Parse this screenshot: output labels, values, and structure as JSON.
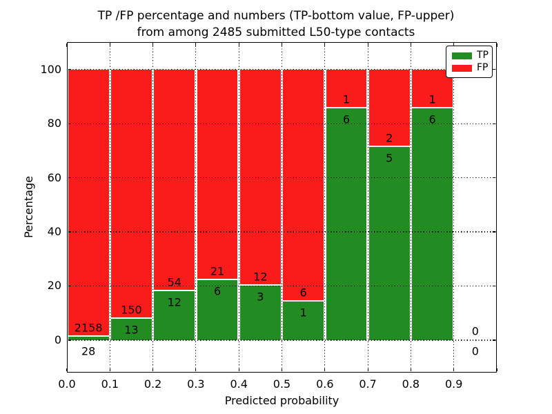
{
  "figure": {
    "title_line1": "TP /FP percentage and numbers (TP-bottom value, FP-upper)",
    "title_line2": "from among 2485 submitted L50-type contacts",
    "background_color": "#ffffff"
  },
  "legend": {
    "position": "upper-right",
    "entries": [
      {
        "label": "TP",
        "color": "#228b22"
      },
      {
        "label": "FP",
        "color": "#fa1b1b"
      }
    ]
  },
  "chart_data": {
    "type": "bar",
    "stacked": true,
    "title": "TP /FP percentage and numbers (TP-bottom value, FP-upper) from among 2485 submitted L50-type contacts",
    "xlabel": "Predicted probability",
    "ylabel": "Percentage",
    "xlim": [
      0.0,
      1.0
    ],
    "ylim": [
      -12,
      110
    ],
    "x_ticks": [
      0.0,
      0.1,
      0.2,
      0.3,
      0.4,
      0.5,
      0.6,
      0.7,
      0.8,
      0.9
    ],
    "x_tick_labels": [
      "0.0",
      "0.1",
      "0.2",
      "0.3",
      "0.4",
      "0.5",
      "0.6",
      "0.7",
      "0.8",
      "0.9"
    ],
    "y_ticks": [
      0,
      20,
      40,
      60,
      80,
      100
    ],
    "y_tick_labels": [
      "0",
      "20",
      "40",
      "60",
      "80",
      "100"
    ],
    "grid": "dotted-black-both-axes",
    "bin_width": 0.1,
    "total_contacts": 2485,
    "categories": [
      "0.0-0.1",
      "0.1-0.2",
      "0.2-0.3",
      "0.3-0.4",
      "0.4-0.5",
      "0.5-0.6",
      "0.6-0.7",
      "0.7-0.8",
      "0.8-0.9",
      "0.9-1.0"
    ],
    "series": [
      {
        "name": "TP",
        "color": "#228b22",
        "counts": [
          28,
          13,
          12,
          6,
          3,
          1,
          6,
          5,
          6,
          0
        ]
      },
      {
        "name": "FP",
        "color": "#fa1b1b",
        "counts": [
          2158,
          150,
          54,
          21,
          12,
          6,
          1,
          2,
          1,
          0
        ]
      }
    ],
    "tp_percent": [
      1.28,
      7.98,
      18.18,
      22.22,
      20.0,
      14.29,
      85.71,
      71.43,
      85.71,
      null
    ],
    "fp_percent": [
      98.72,
      92.02,
      81.82,
      77.78,
      80.0,
      85.71,
      14.29,
      28.57,
      14.29,
      null
    ]
  }
}
